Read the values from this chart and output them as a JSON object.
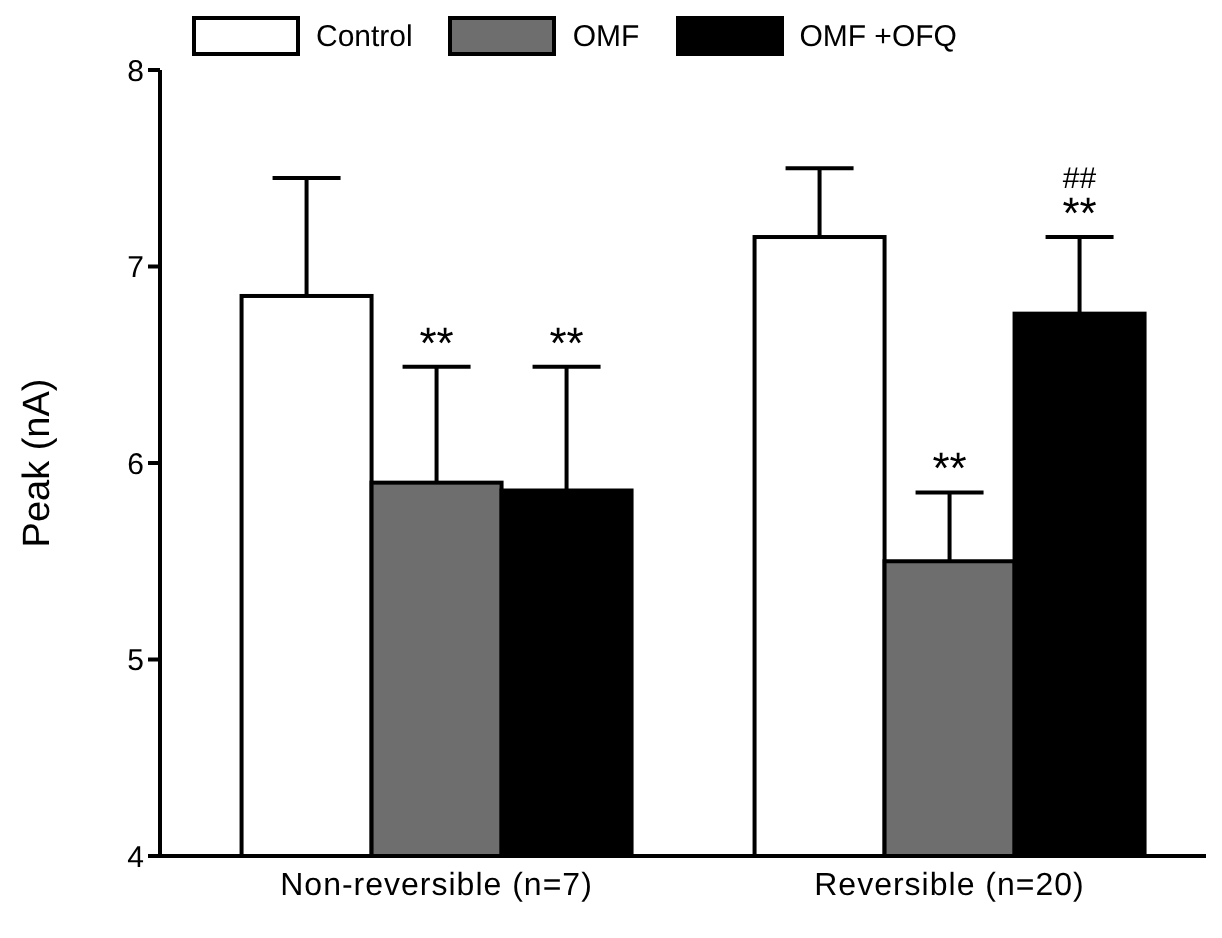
{
  "chart_data": {
    "type": "bar",
    "ylabel": "Peak (nA)",
    "categories": [
      "Non-reversible (n=7)",
      "Reversible (n=20)"
    ],
    "series": [
      {
        "name": "Control",
        "color": "#ffffff",
        "values": [
          6.85,
          7.15
        ],
        "errors": [
          [
            6.85,
            7.45
          ],
          [
            7.15,
            7.5
          ]
        ]
      },
      {
        "name": "OMF",
        "color": "#6e6e6e",
        "values": [
          5.9,
          5.5
        ],
        "errors": [
          [
            5.9,
            6.49
          ],
          [
            5.5,
            5.85
          ]
        ]
      },
      {
        "name": "OMF +OFQ",
        "color": "#000000",
        "values": [
          5.86,
          6.76
        ],
        "errors": [
          [
            5.86,
            6.49
          ],
          [
            6.76,
            7.15
          ]
        ]
      }
    ],
    "ylim": [
      4,
      8
    ],
    "yticks": [
      4,
      5,
      6,
      7,
      8
    ],
    "grid": false,
    "legend": "top",
    "annotations": [
      "**",
      "**",
      "**",
      "**",
      "##"
    ]
  }
}
